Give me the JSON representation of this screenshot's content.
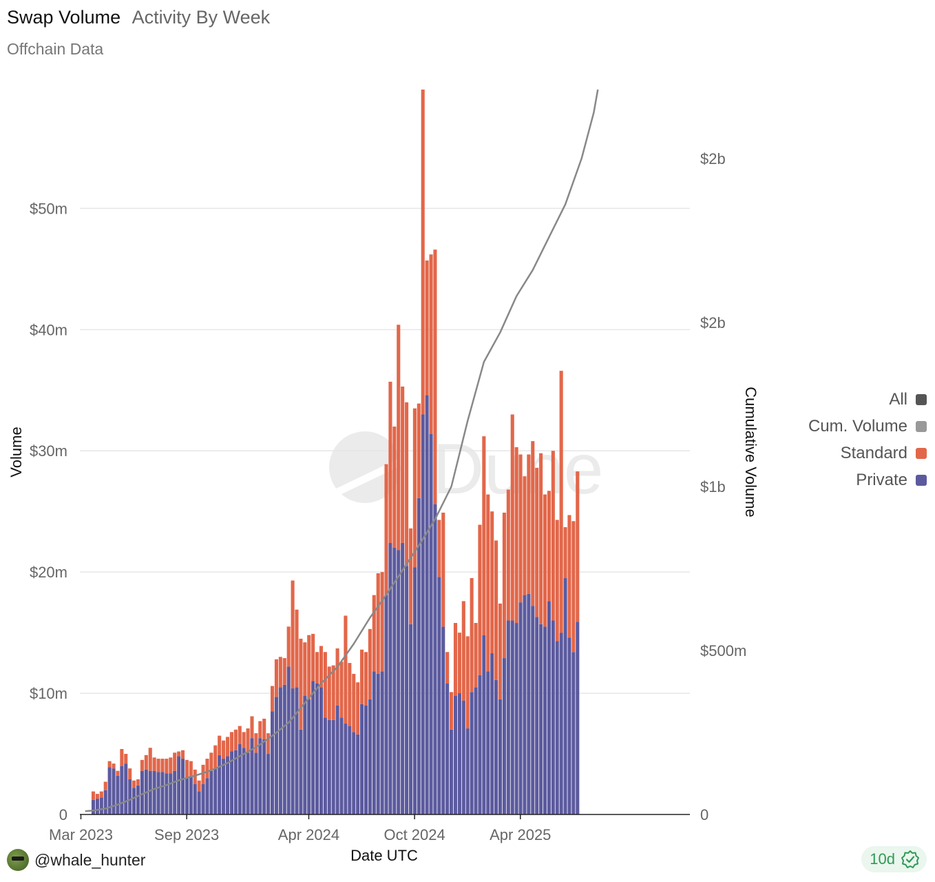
{
  "header": {
    "title": "Swap Volume",
    "subtitle": "Activity By Week",
    "source": "Offchain Data"
  },
  "legend": {
    "items": [
      {
        "label": "All",
        "color": "#555555"
      },
      {
        "label": "Cum. Volume",
        "color": "#999999"
      },
      {
        "label": "Standard",
        "color": "#e2674a"
      },
      {
        "label": "Private",
        "color": "#5c5a9e"
      }
    ]
  },
  "footer": {
    "author": "@whale_hunter",
    "age": "10d"
  },
  "watermark": "Dune",
  "chart_data": {
    "type": "bar",
    "title": "Swap Volume",
    "xlabel": "Date UTC",
    "ylabel": "Volume",
    "y2label": "Cumulative Volume",
    "x_ticks": [
      {
        "label": "Mar 2023",
        "index": 0
      },
      {
        "label": "Sep 2023",
        "index": 26
      },
      {
        "label": "Apr 2024",
        "index": 56
      },
      {
        "label": "Oct 2024",
        "index": 82
      },
      {
        "label": "Apr 2025",
        "index": 108
      }
    ],
    "y_ticks": [
      {
        "label": "0",
        "value": 0
      },
      {
        "label": "$10m",
        "value": 10
      },
      {
        "label": "$20m",
        "value": 20
      },
      {
        "label": "$30m",
        "value": 30
      },
      {
        "label": "$40m",
        "value": 40
      },
      {
        "label": "$50m",
        "value": 50
      }
    ],
    "y2_ticks": [
      {
        "label": "0",
        "value": 0
      },
      {
        "label": "$500m",
        "value": 500
      },
      {
        "label": "$1b",
        "value": 1000
      },
      {
        "label": "$2b",
        "value": 1500
      },
      {
        "label": "$2b",
        "value": 2000
      }
    ],
    "ylim": [
      0,
      59.8
    ],
    "y2lim": [
      0,
      2210
    ],
    "stacked": true,
    "series": [
      {
        "name": "Private",
        "color": "#5c5a9e",
        "values": [
          1.2,
          1.3,
          1.4,
          2.0,
          3.9,
          3.8,
          3.2,
          4.0,
          4.2,
          2.9,
          2.2,
          2.4,
          3.6,
          3.7,
          3.6,
          3.6,
          3.5,
          3.5,
          3.4,
          3.4,
          3.6,
          4.8,
          4.6,
          3.0,
          3.2,
          2.5,
          1.9,
          2.5,
          3.0,
          3.6,
          3.8,
          4.9,
          4.6,
          4.8,
          5.2,
          5.3,
          5.8,
          5.5,
          5.1,
          6.3,
          5.1,
          6.3,
          6.2,
          5.0,
          8.5,
          9.7,
          10.5,
          10.7,
          12.2,
          10.4,
          10.5,
          7.0,
          9.8,
          9.5,
          11.0,
          10.8,
          10.5,
          8.0,
          7.8,
          7.8,
          9.0,
          8.0,
          7.5,
          7.3,
          6.8,
          6.6,
          9.1,
          9.0,
          9.5,
          11.8,
          11.6,
          11.8,
          18.1,
          22.4,
          22.0,
          21.8,
          22.4,
          20.5,
          15.7,
          20.4,
          26.1,
          33.0,
          34.6,
          31.4,
          25.6,
          19.6,
          15.5,
          10.8,
          7.0,
          9.8,
          10.0,
          9.4,
          7.1,
          10.1,
          10.5,
          11.5,
          14.8,
          11.8,
          13.3,
          11.1,
          9.5,
          12.9,
          16.0,
          16.0,
          15.8,
          17.5,
          18.1,
          18.2,
          17.2,
          16.3,
          15.7,
          15.5,
          17.6,
          16.0,
          14.3,
          15.0,
          19.5,
          14.6,
          13.4,
          15.9
        ]
      },
      {
        "name": "Standard",
        "color": "#e2674a",
        "values": [
          0.7,
          0.4,
          0.5,
          0.7,
          0.5,
          0.4,
          0.4,
          1.4,
          0.8,
          0.9,
          0.6,
          0.5,
          0.9,
          1.2,
          1.9,
          1.1,
          1.1,
          1.1,
          1.2,
          1.3,
          1.5,
          0.4,
          0.7,
          1.5,
          1.2,
          1.2,
          0.9,
          1.6,
          1.6,
          1.5,
          1.9,
          1.6,
          1.5,
          1.6,
          1.6,
          1.7,
          1.5,
          1.3,
          2.0,
          1.8,
          1.6,
          1.4,
          1.7,
          1.7,
          2.1,
          3.1,
          2.5,
          2.2,
          3.3,
          8.9,
          6.4,
          7.5,
          4.4,
          5.3,
          3.9,
          2.6,
          3.4,
          5.4,
          4.4,
          4.5,
          4.7,
          4.6,
          8.9,
          5.2,
          4.8,
          4.3,
          4.5,
          4.4,
          5.8,
          6.3,
          8.3,
          8.2,
          10.8,
          13.3,
          10.0,
          18.6,
          12.9,
          13.5,
          7.9,
          13.1,
          7.8,
          26.8,
          11.1,
          14.8,
          21.0,
          4.7,
          9.4,
          2.6,
          3.1,
          6.0,
          5.0,
          8.2,
          7.6,
          9.4,
          5.3,
          12.4,
          16.4,
          14.6,
          11.7,
          11.5,
          7.9,
          12.0,
          10.8,
          17.0,
          14.5,
          12.2,
          9.8,
          11.5,
          13.6,
          12.3,
          14.1,
          10.9,
          9.1,
          14.0,
          10.0,
          21.6,
          4.2,
          10.1,
          10.8,
          12.4
        ]
      }
    ],
    "cumulative": {
      "name": "Cum. Volume",
      "color": "#888888",
      "x_indices": [
        -2,
        0,
        3,
        6,
        9,
        12,
        15,
        18,
        21,
        24,
        27,
        30,
        33,
        36,
        40,
        44,
        48,
        52,
        56,
        60,
        64,
        68,
        72,
        76,
        80,
        84,
        88,
        92,
        96,
        100,
        104,
        108,
        112,
        116,
        120,
        123,
        124
      ],
      "values": [
        10,
        12,
        18,
        30,
        45,
        62,
        78,
        90,
        104,
        115,
        126,
        140,
        157,
        178,
        205,
        240,
        280,
        340,
        400,
        450,
        520,
        600,
        670,
        745,
        820,
        900,
        1000,
        1200,
        1380,
        1470,
        1580,
        1660,
        1760,
        1860,
        2000,
        2140,
        2210
      ]
    }
  }
}
